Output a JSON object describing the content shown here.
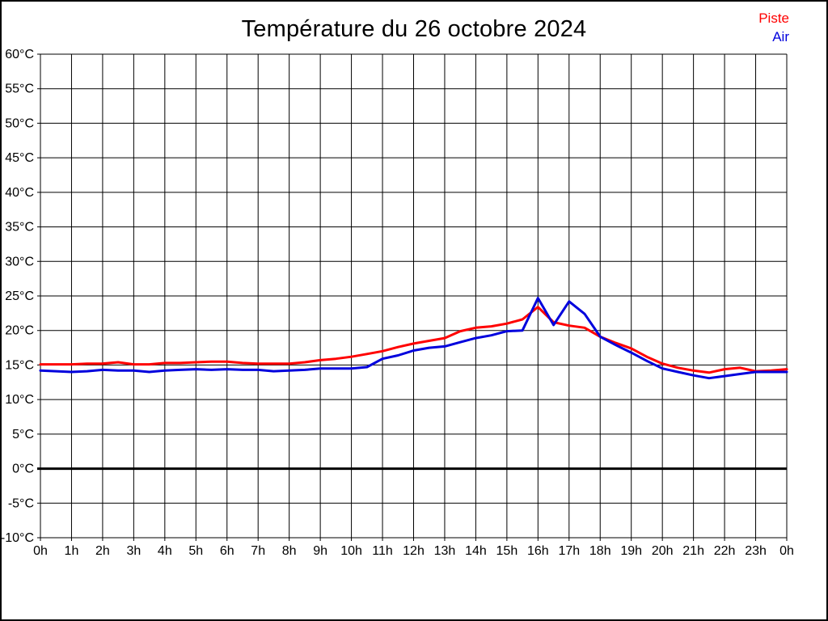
{
  "page": {
    "background": "#ffffff",
    "border_color": "#000000"
  },
  "header": {
    "title": "Température du 26 octobre 2024"
  },
  "legend": {
    "position": "top-right",
    "items": [
      {
        "label": "Piste",
        "color": "#ff0000"
      },
      {
        "label": "Air",
        "color": "#0000dd"
      }
    ]
  },
  "chart_data": {
    "type": "line",
    "title": "Température du 26 octobre 2024",
    "xlabel": "",
    "ylabel": "",
    "xlim": [
      0,
      24
    ],
    "ylim": [
      -10,
      60
    ],
    "grid": true,
    "zero_line_bold": true,
    "grid_color": "#000000",
    "legend_position": "top-right",
    "x_tick_labels": [
      "0h",
      "1h",
      "2h",
      "3h",
      "4h",
      "5h",
      "6h",
      "7h",
      "8h",
      "9h",
      "10h",
      "11h",
      "12h",
      "13h",
      "14h",
      "15h",
      "16h",
      "17h",
      "18h",
      "19h",
      "20h",
      "21h",
      "22h",
      "23h",
      "0h"
    ],
    "y_tick_values": [
      60,
      55,
      50,
      45,
      40,
      35,
      30,
      25,
      20,
      15,
      10,
      5,
      0,
      -5,
      -10
    ],
    "y_tick_labels": [
      "60°C",
      "55°C",
      "50°C",
      "45°C",
      "40°C",
      "35°C",
      "30°C",
      "25°C",
      "20°C",
      "15°C",
      "10°C",
      "5°C",
      "0°C",
      "-5°C",
      "-10°C"
    ],
    "x": [
      0,
      0.5,
      1,
      1.5,
      2,
      2.5,
      3,
      3.5,
      4,
      4.5,
      5,
      5.5,
      6,
      6.5,
      7,
      7.5,
      8,
      8.5,
      9,
      9.5,
      10,
      10.5,
      11,
      11.5,
      12,
      12.5,
      13,
      13.5,
      14,
      14.5,
      15,
      15.5,
      16,
      16.5,
      17,
      17.5,
      18,
      18.5,
      19,
      19.5,
      20,
      20.5,
      21,
      21.5,
      22,
      22.5,
      23,
      23.5,
      24
    ],
    "series": [
      {
        "name": "Piste",
        "color": "#ff0000",
        "values": [
          15.1,
          15.1,
          15.1,
          15.2,
          15.2,
          15.4,
          15.1,
          15.1,
          15.3,
          15.3,
          15.4,
          15.5,
          15.5,
          15.3,
          15.2,
          15.2,
          15.2,
          15.4,
          15.7,
          15.9,
          16.2,
          16.6,
          17.0,
          17.6,
          18.1,
          18.5,
          18.9,
          19.9,
          20.4,
          20.6,
          21.0,
          21.6,
          23.4,
          21.2,
          20.7,
          20.4,
          19.1,
          18.2,
          17.4,
          16.2,
          15.2,
          14.6,
          14.2,
          13.9,
          14.4,
          14.6,
          14.1,
          14.2,
          14.4
        ]
      },
      {
        "name": "Air",
        "color": "#0000dd",
        "values": [
          14.2,
          14.1,
          14.0,
          14.1,
          14.3,
          14.2,
          14.2,
          14.0,
          14.2,
          14.3,
          14.4,
          14.3,
          14.4,
          14.3,
          14.3,
          14.1,
          14.2,
          14.3,
          14.5,
          14.5,
          14.5,
          14.7,
          15.9,
          16.4,
          17.1,
          17.5,
          17.7,
          18.3,
          18.9,
          19.3,
          19.9,
          20.0,
          24.7,
          20.8,
          24.2,
          22.4,
          19.1,
          17.9,
          16.8,
          15.6,
          14.5,
          14.0,
          13.5,
          13.1,
          13.4,
          13.7,
          14.0,
          14.0,
          14.0
        ]
      }
    ]
  }
}
